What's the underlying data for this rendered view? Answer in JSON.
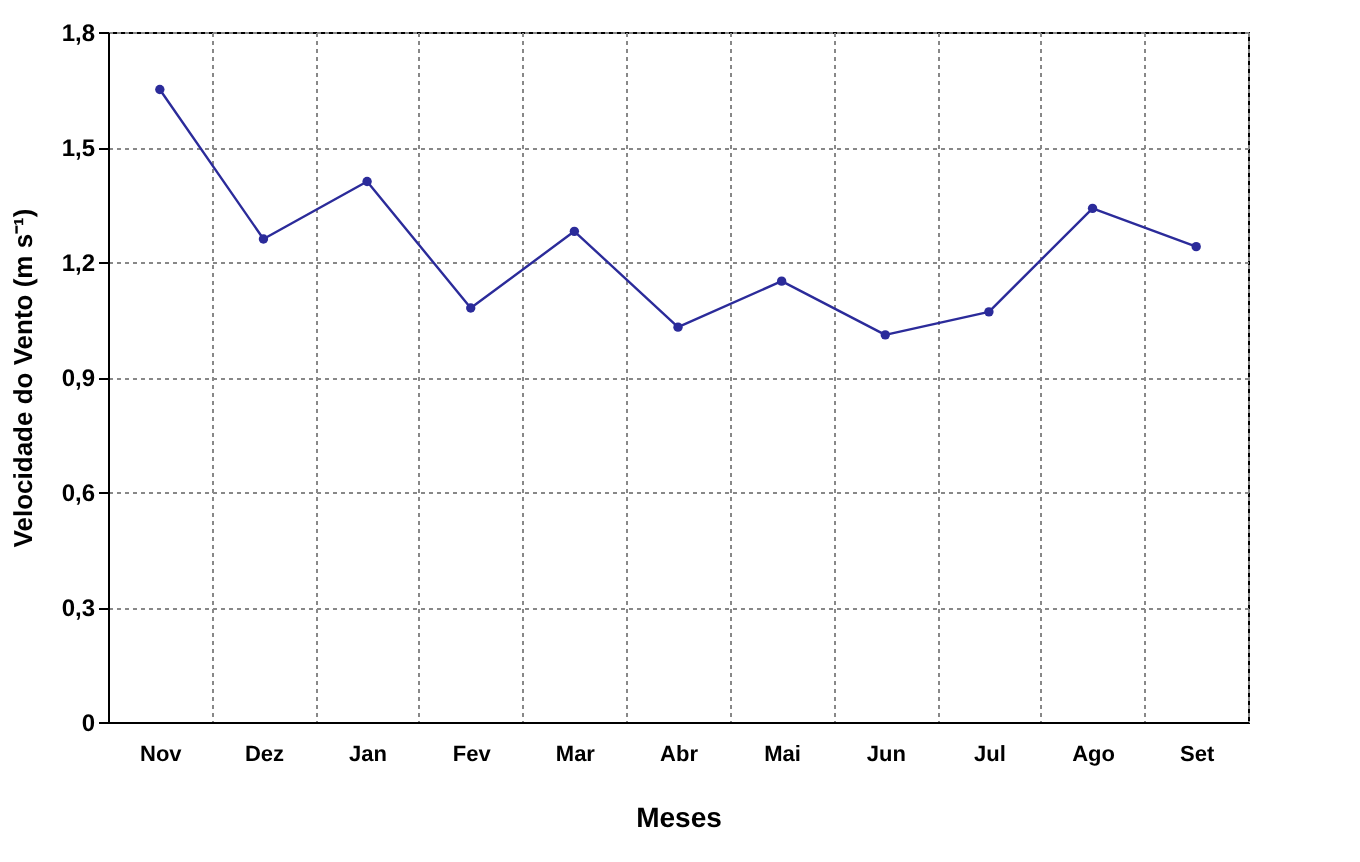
{
  "chart_data": {
    "type": "line",
    "xlabel": "Meses",
    "ylabel": "Velocidade do Vento (m s⁻¹)",
    "categories": [
      "Nov",
      "Dez",
      "Jan",
      "Fev",
      "Mar",
      "Abr",
      "Mai",
      "Jun",
      "Jul",
      "Ago",
      "Set"
    ],
    "series": [
      {
        "color": "#2b2b9a",
        "values": [
          1.65,
          1.26,
          1.41,
          1.08,
          1.28,
          1.03,
          1.15,
          1.01,
          1.07,
          1.34,
          1.24
        ]
      }
    ],
    "ylim": [
      0,
      1.8
    ],
    "yticks": [
      0,
      {
        "value": 0.3,
        "label": "0,3"
      },
      {
        "value": 0.6,
        "label": "0,6"
      },
      {
        "value": 0.9,
        "label": "0,9"
      },
      {
        "value": 1.2,
        "label": "1,2"
      },
      {
        "value": 1.5,
        "label": "1,5"
      },
      {
        "value": 1.8,
        "label": "1,8"
      }
    ],
    "grid": true,
    "marker": "circle",
    "line_style": "solid"
  }
}
